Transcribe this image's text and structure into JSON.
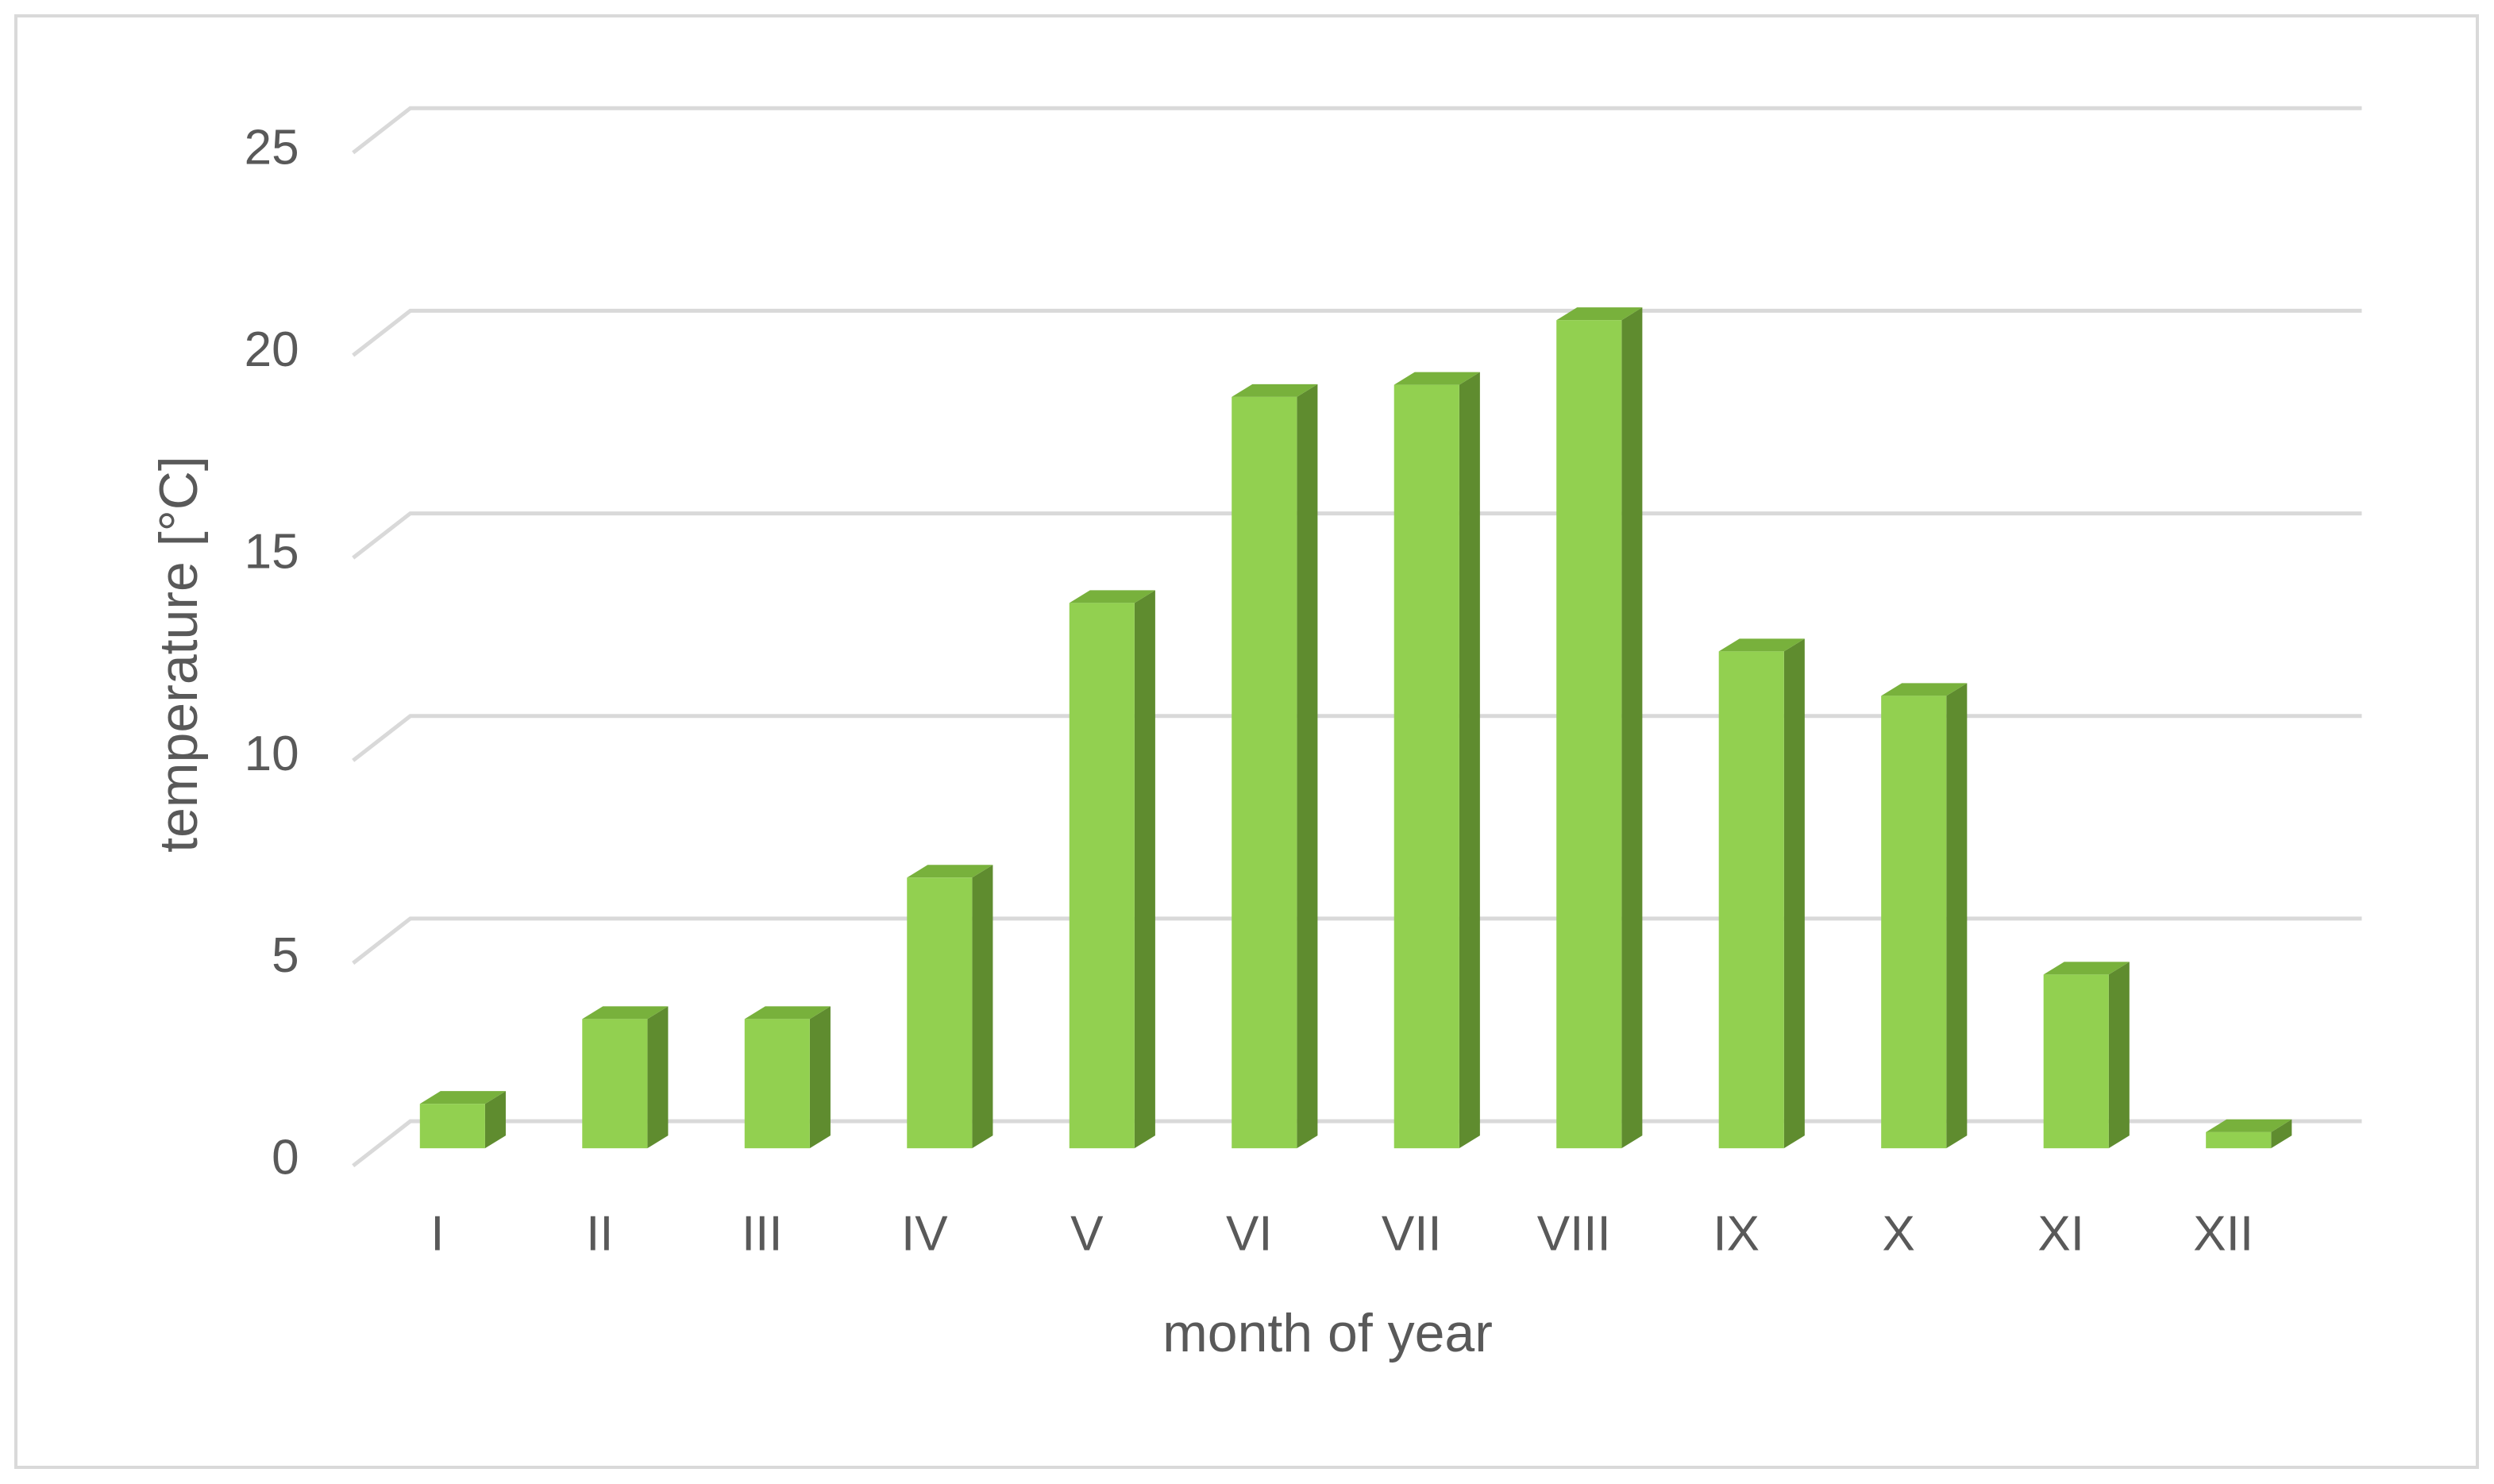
{
  "chart_data": {
    "type": "bar3d",
    "xlabel": "month of year",
    "ylabel": "temperature [°C]",
    "categories": [
      "I",
      "II",
      "III",
      "IV",
      "V",
      "VI",
      "VII",
      "VIII",
      "IX",
      "X",
      "XI",
      "XII"
    ],
    "values": [
      1.1,
      3.2,
      3.2,
      6.7,
      13.5,
      18.6,
      18.9,
      20.5,
      12.3,
      11.2,
      4.3,
      0.4
    ],
    "color": "#92d050",
    "ylim": [
      0,
      25
    ],
    "yticks": [
      0,
      5,
      10,
      15,
      20,
      25
    ],
    "grid": true
  }
}
